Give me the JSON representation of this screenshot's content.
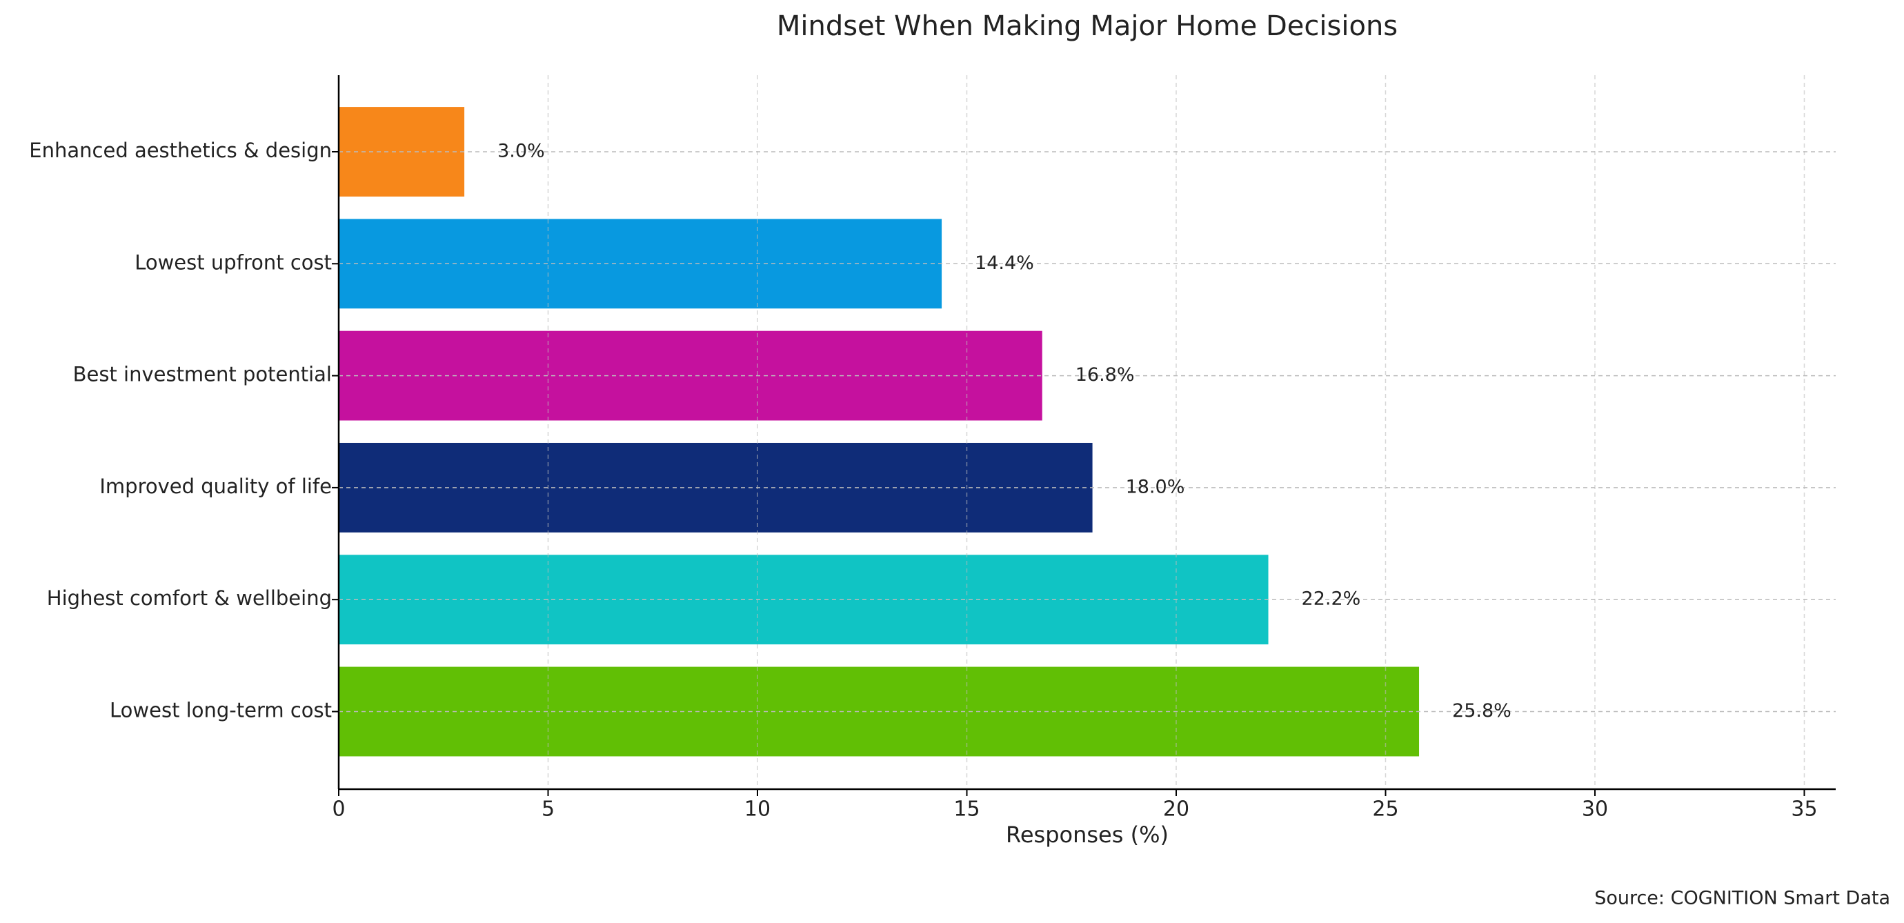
{
  "chart_data": {
    "type": "barh",
    "title": "Mindset When Making Major Home Decisions",
    "categories": [
      "Enhanced aesthetics & design",
      "Lowest upfront cost",
      "Best investment potential",
      "Improved quality of life",
      "Highest comfort & wellbeing",
      "Lowest long-term cost"
    ],
    "values": [
      3.0,
      14.4,
      16.8,
      18.0,
      22.2,
      25.8
    ],
    "value_labels": [
      "3.0%",
      "14.4%",
      "16.8%",
      "18.0%",
      "22.2%",
      "25.8%"
    ],
    "colors": [
      "#f7871a",
      "#0899e0",
      "#c5119e",
      "#0f2c78",
      "#10c4c4",
      "#61bf05"
    ],
    "xlabel": "Responses (%)",
    "xlim": [
      0,
      35.75
    ],
    "xticks": [
      0,
      5,
      10,
      15,
      20,
      25,
      30,
      35
    ],
    "grid": true,
    "source": "Source: COGNITION Smart Data"
  }
}
